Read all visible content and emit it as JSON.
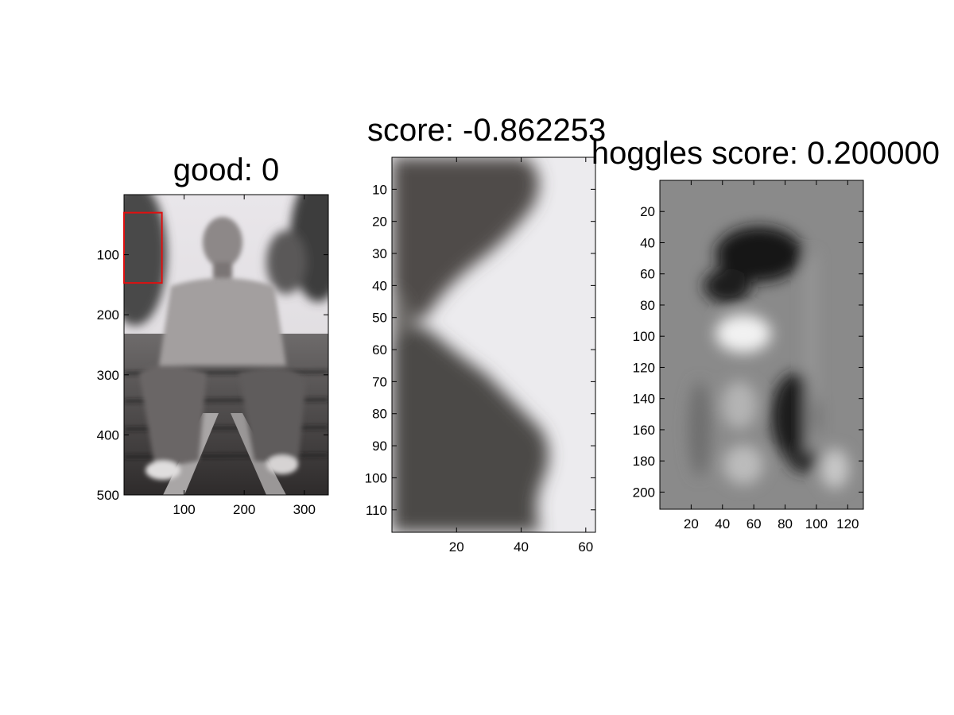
{
  "chart_data": [
    {
      "type": "image",
      "title": "good: 0",
      "xlim": [
        0,
        340
      ],
      "ylim": [
        500,
        0
      ],
      "xticks": [
        100,
        200,
        300
      ],
      "yticks": [
        100,
        200,
        300,
        400,
        500
      ],
      "highlight_box": {
        "x0": 0,
        "y0": 30,
        "x1": 63,
        "y1": 147,
        "color": "#e01010"
      }
    },
    {
      "type": "image",
      "title": "score: -0.862253",
      "xlim": [
        0,
        63
      ],
      "ylim": [
        117,
        0
      ],
      "xticks": [
        20,
        40,
        60
      ],
      "yticks": [
        10,
        20,
        30,
        40,
        50,
        60,
        70,
        80,
        90,
        100,
        110
      ]
    },
    {
      "type": "image",
      "title": "hoggles score: 0.200000",
      "xlim": [
        0,
        130
      ],
      "ylim": [
        211,
        0
      ],
      "xticks": [
        20,
        40,
        60,
        80,
        100,
        120
      ],
      "yticks": [
        20,
        40,
        60,
        80,
        100,
        120,
        140,
        160,
        180,
        200
      ]
    }
  ]
}
